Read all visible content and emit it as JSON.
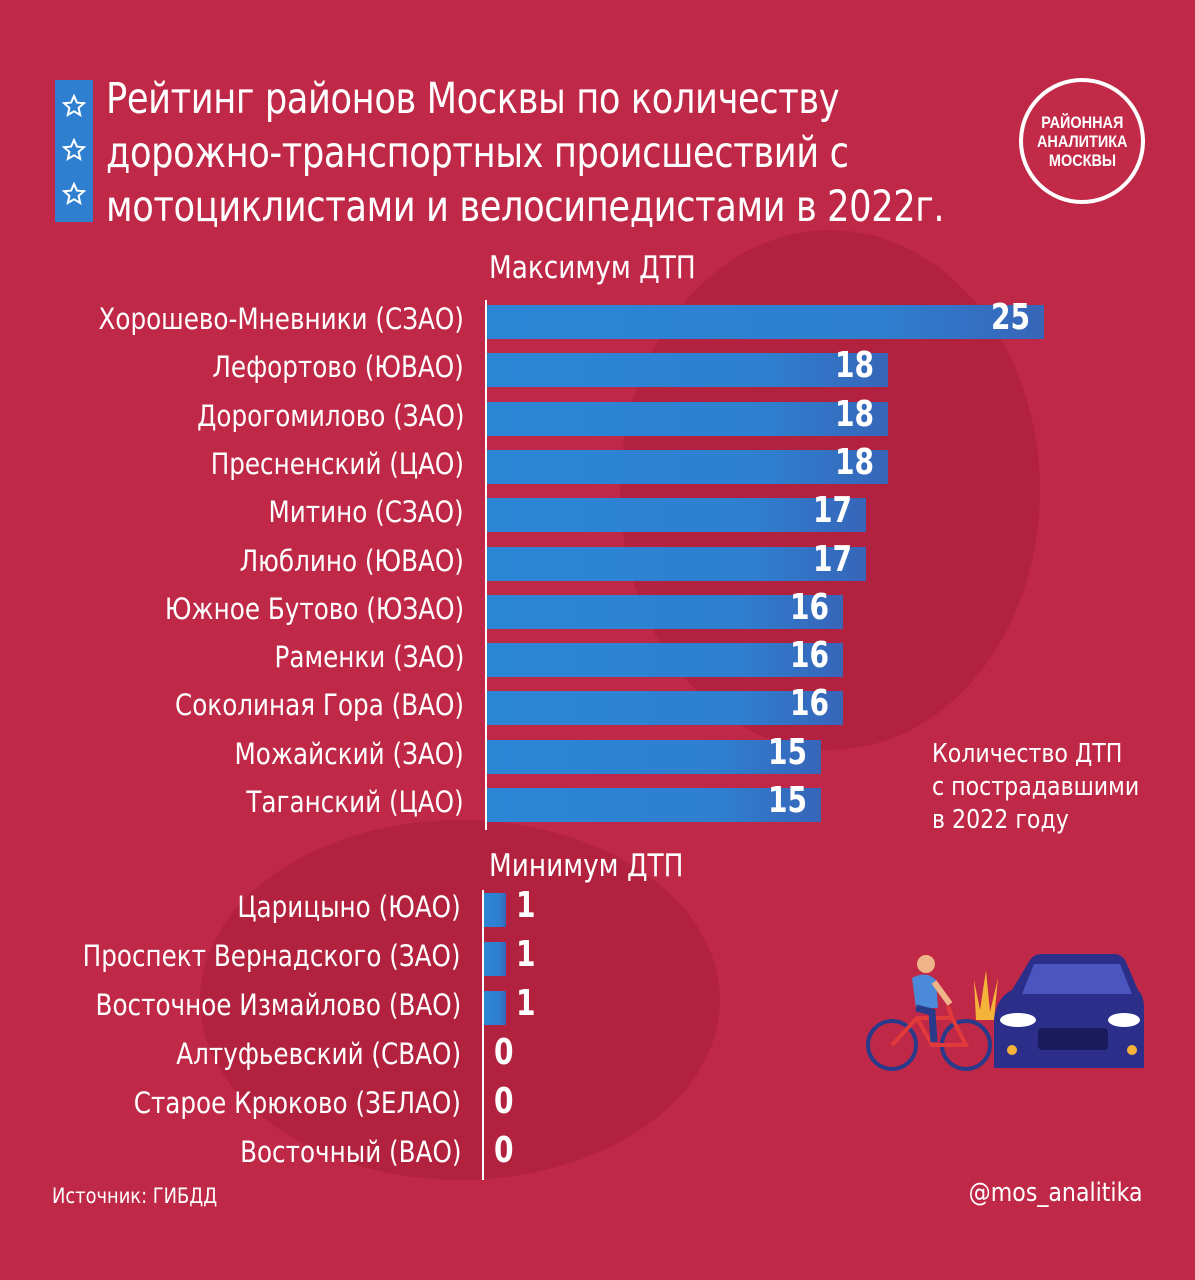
{
  "title": [
    "Рейтинг районов Москвы по количеству",
    "дорожно-транспортных происшествий с",
    "мотоциклистами и велосипедистами в 2022г."
  ],
  "logo": [
    "РАЙОННАЯ",
    "АНАЛИТИКА",
    "МОСКВЫ"
  ],
  "legend_note": [
    "Количество ДТП",
    "с пострадавшими",
    "в 2022 году"
  ],
  "source": "Источник: ГИБДД",
  "handle": "@mos_analitika",
  "colors": {
    "background": "#bf2846",
    "bar": "#2f7fd0",
    "text": "#ffffff"
  },
  "chart_data": [
    {
      "type": "bar",
      "orientation": "horizontal",
      "title": "Максимум ДТП",
      "categories": [
        "Хорошево-Мневники (СЗАО)",
        "Лефортово (ЮВАО)",
        "Дорогомилово (ЗАО)",
        "Пресненский (ЦАО)",
        "Митино (СЗАО)",
        "Люблино (ЮВАО)",
        "Южное Бутово (ЮЗАО)",
        "Раменки (ЗАО)",
        "Соколиная Гора (ВАО)",
        "Можайский (ЗАО)",
        "Таганский (ЦАО)"
      ],
      "values": [
        25,
        18,
        18,
        18,
        17,
        17,
        16,
        16,
        16,
        15,
        15
      ],
      "xlim": [
        0,
        25
      ]
    },
    {
      "type": "bar",
      "orientation": "horizontal",
      "title": "Минимум ДТП",
      "categories": [
        "Царицыно (ЮАО)",
        "Проспект Вернадского (ЗАО)",
        "Восточное Измайлово (ВАО)",
        "Алтуфьевский (СВАО)",
        "Старое Крюково (ЗЕЛАО)",
        "Восточный (ВАО)"
      ],
      "values": [
        1,
        1,
        1,
        0,
        0,
        0
      ],
      "xlim": [
        0,
        25
      ]
    }
  ]
}
